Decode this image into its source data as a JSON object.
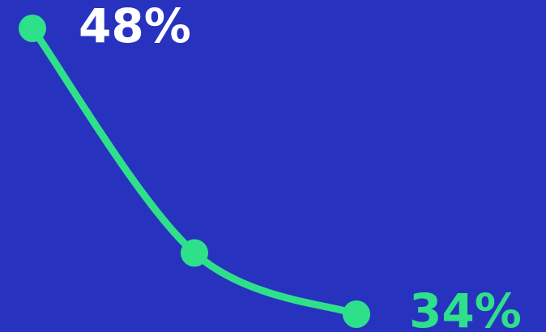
{
  "colors": {
    "background": "#2733bf",
    "line": "#2fe08a",
    "start_label": "#ffffff",
    "end_label": "#2fe08a"
  },
  "chart_data": {
    "type": "line",
    "title": "",
    "xlabel": "",
    "ylabel": "",
    "grid": false,
    "legend": false,
    "points": [
      {
        "x": 1,
        "y": 48
      },
      {
        "x": 2,
        "y": 37
      },
      {
        "x": 3,
        "y": 34
      }
    ],
    "labels": {
      "start": "48%",
      "end": "34%"
    }
  }
}
